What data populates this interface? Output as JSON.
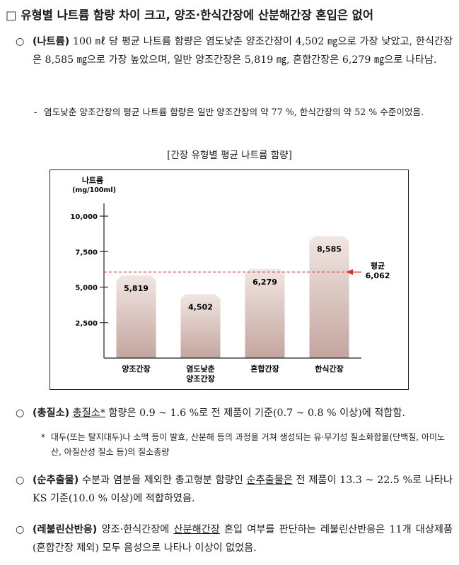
{
  "heading": "□ 유형별 나트륨 함량 차이 크고, 양조·한식간장에 산분해간장 혼입은 없어",
  "sodium": {
    "bullet": "○",
    "label": "(나트륨)",
    "text": "100 ㎖ 당 평균 나트륨 함량은 염도낮춘 양조간장이 4,502 ㎎으로 가장 낮았고, 한식간장은 8,585 ㎎으로 가장 높았으며, 일반 양조간장은 5,819 ㎎, 혼합간장은 6,279 ㎎으로 나타남.",
    "sub_dash": "-",
    "sub_text": "염도낮춘 양조간장의 평균 나트륨 함량은 일반 양조간장의 약 77 %, 한식간장의 약 52 % 수준이었음."
  },
  "chart_caption": "[간장 유형별 평균 나트륨 함량]",
  "chart_data": {
    "type": "bar",
    "ylabel_line1": "나트륨",
    "ylabel_line2": "(mg/100ml)",
    "categories": [
      "양조간장",
      "염도낮춘\n양조간장",
      "혼합간장",
      "한식간장"
    ],
    "values": [
      5819,
      4502,
      6279,
      8585
    ],
    "value_labels": [
      "5,819",
      "4,502",
      "6,279",
      "8,585"
    ],
    "yticks": [
      2500,
      5000,
      7500,
      10000
    ],
    "ytick_labels": [
      "2,500",
      "5,000",
      "7,500",
      "10,000"
    ],
    "ylim": [
      0,
      10500
    ],
    "average": {
      "label": "평균",
      "value": 6062,
      "value_label": "6,062",
      "color": "#e03030"
    },
    "bar_color_top": "#f1e6e2",
    "bar_color_bottom": "#c4a59e",
    "grid": false
  },
  "nitrogen": {
    "bullet": "○",
    "label": "(총질소)",
    "text_a": "총질소*",
    "text_b": " 함량은 0.9 ~ 1.6 %로 전 제품이 기준(0.7 ~ 0.8 % 이상)에 적합함.",
    "note_star": "*",
    "note_text": "대두(또는 탈지대두)나 소맥 등이 발효, 산분해 등의 과정을 거쳐 생성되는 유·무기성 질소화합물(단백질, 아미노산, 아질산성 질소 등)의 질소총량"
  },
  "extract": {
    "bullet": "○",
    "label": "(순추출물)",
    "text_a": "수분과 염분을 제외한 총고형분 함량인 ",
    "text_u": "순추출물은",
    "text_b": " 전 제품이 13.3 ~ 22.5 %로 나타나 KS 기준(10.0 % 이상)에 적합하였음."
  },
  "levulinic": {
    "bullet": "○",
    "label": "(레불린산반응)",
    "text_a": "양조·한식간장에 ",
    "text_u": "산분해간장",
    "text_b": " 혼입 여부를 판단하는 레불린산반응은 11개 대상제품(혼합간장 제외) 모두 음성으로 나타나 이상이 없었음."
  }
}
